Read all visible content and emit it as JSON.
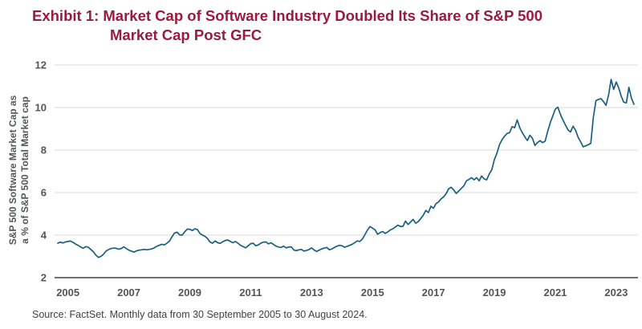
{
  "exhibit": {
    "title_line1": "Exhibit 1: Market Cap of Software Industry Doubled Its Share of S&P 500",
    "title_line2": "Market Cap Post GFC",
    "title_color": "#9b1b3e"
  },
  "source_note": "Source: FactSet. Monthly data from 30 September 2005 to 30 August 2024.",
  "chart_data": {
    "type": "line",
    "title": "Market Cap of Software Industry Doubled Its Share of S&P 500 Market Cap Post GFC",
    "ylabel_line1": "S&P 500 Software Market Cap as",
    "ylabel_line2": "a % of S&P 500 Total Market cap",
    "x_start": "2005-09",
    "x_end": "2024-08",
    "frequency": "monthly",
    "ylim": [
      2,
      12
    ],
    "y_ticks": [
      2,
      4,
      6,
      8,
      10,
      12
    ],
    "x_ticks": [
      {
        "label": "2005",
        "month_index": 4
      },
      {
        "label": "2007",
        "month_index": 28
      },
      {
        "label": "2009",
        "month_index": 52
      },
      {
        "label": "2011",
        "month_index": 76
      },
      {
        "label": "2013",
        "month_index": 100
      },
      {
        "label": "2015",
        "month_index": 124
      },
      {
        "label": "2017",
        "month_index": 148
      },
      {
        "label": "2019",
        "month_index": 172
      },
      {
        "label": "2021",
        "month_index": 196
      },
      {
        "label": "2023",
        "month_index": 220
      }
    ],
    "grid": "horizontal",
    "grid_color": "#d9dadb",
    "axis_color": "#6e7072",
    "label_color": "#54565a",
    "line_color": "#1a5f80",
    "values": [
      3.62,
      3.67,
      3.63,
      3.68,
      3.7,
      3.72,
      3.66,
      3.58,
      3.52,
      3.44,
      3.38,
      3.46,
      3.43,
      3.33,
      3.22,
      3.06,
      2.95,
      3.0,
      3.1,
      3.25,
      3.32,
      3.37,
      3.39,
      3.38,
      3.34,
      3.37,
      3.45,
      3.37,
      3.29,
      3.25,
      3.2,
      3.26,
      3.29,
      3.31,
      3.33,
      3.31,
      3.33,
      3.35,
      3.4,
      3.47,
      3.52,
      3.57,
      3.54,
      3.62,
      3.72,
      3.92,
      4.1,
      4.14,
      4.01,
      4.0,
      4.15,
      4.28,
      4.28,
      4.21,
      4.3,
      4.26,
      4.08,
      4.0,
      3.94,
      3.84,
      3.67,
      3.62,
      3.73,
      3.64,
      3.61,
      3.69,
      3.75,
      3.77,
      3.7,
      3.64,
      3.7,
      3.62,
      3.52,
      3.46,
      3.4,
      3.5,
      3.6,
      3.62,
      3.5,
      3.54,
      3.62,
      3.67,
      3.68,
      3.59,
      3.64,
      3.56,
      3.48,
      3.44,
      3.42,
      3.48,
      3.4,
      3.44,
      3.45,
      3.3,
      3.27,
      3.31,
      3.33,
      3.25,
      3.28,
      3.32,
      3.4,
      3.3,
      3.23,
      3.3,
      3.35,
      3.39,
      3.42,
      3.31,
      3.35,
      3.42,
      3.48,
      3.52,
      3.5,
      3.43,
      3.47,
      3.52,
      3.57,
      3.65,
      3.73,
      3.7,
      3.82,
      4.02,
      4.24,
      4.4,
      4.33,
      4.25,
      4.04,
      4.12,
      4.17,
      4.08,
      4.15,
      4.24,
      4.3,
      4.38,
      4.47,
      4.4,
      4.42,
      4.66,
      4.5,
      4.62,
      4.74,
      4.56,
      4.63,
      4.78,
      4.94,
      5.16,
      5.06,
      5.36,
      5.26,
      5.48,
      5.56,
      5.7,
      5.8,
      5.95,
      6.18,
      6.25,
      6.12,
      5.96,
      6.08,
      6.2,
      6.32,
      6.55,
      6.62,
      6.7,
      6.6,
      6.7,
      6.55,
      6.78,
      6.64,
      6.6,
      6.88,
      7.08,
      7.55,
      7.85,
      8.25,
      8.48,
      8.65,
      8.78,
      8.82,
      9.1,
      9.05,
      9.42,
      9.05,
      8.82,
      8.62,
      8.45,
      8.7,
      8.55,
      8.22,
      8.35,
      8.44,
      8.35,
      8.42,
      8.88,
      9.28,
      9.6,
      9.92,
      10.02,
      9.68,
      9.42,
      9.18,
      8.95,
      8.85,
      9.12,
      8.93,
      8.6,
      8.38,
      8.15,
      8.2,
      8.25,
      8.32,
      9.55,
      10.32,
      10.38,
      10.42,
      10.28,
      10.1,
      10.6,
      11.32,
      10.85,
      11.2,
      10.92,
      10.52,
      10.25,
      10.22,
      10.95,
      10.45,
      10.15
    ]
  }
}
